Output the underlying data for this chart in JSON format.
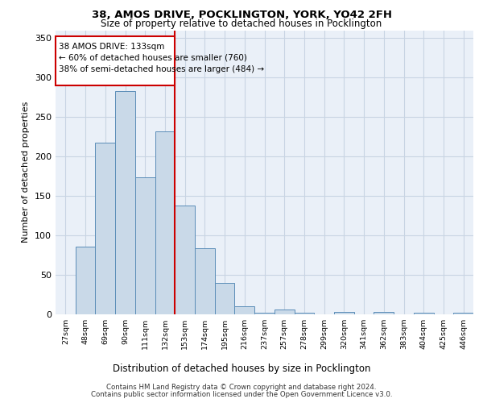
{
  "title_line1": "38, AMOS DRIVE, POCKLINGTON, YORK, YO42 2FH",
  "title_line2": "Size of property relative to detached houses in Pocklington",
  "xlabel": "Distribution of detached houses by size in Pocklington",
  "ylabel": "Number of detached properties",
  "footer_line1": "Contains HM Land Registry data © Crown copyright and database right 2024.",
  "footer_line2": "Contains public sector information licensed under the Open Government Licence v3.0.",
  "annotation_line1": "38 AMOS DRIVE: 133sqm",
  "annotation_line2": "← 60% of detached houses are smaller (760)",
  "annotation_line3": "38% of semi-detached houses are larger (484) →",
  "bar_color": "#c9d9e8",
  "bar_edge_color": "#5b8db8",
  "vline_color": "#cc0000",
  "vline_x": 5.5,
  "categories": [
    "27sqm",
    "48sqm",
    "69sqm",
    "90sqm",
    "111sqm",
    "132sqm",
    "153sqm",
    "174sqm",
    "195sqm",
    "216sqm",
    "237sqm",
    "257sqm",
    "278sqm",
    "299sqm",
    "320sqm",
    "341sqm",
    "362sqm",
    "383sqm",
    "404sqm",
    "425sqm",
    "446sqm"
  ],
  "values": [
    0,
    86,
    218,
    283,
    174,
    232,
    138,
    84,
    40,
    10,
    2,
    6,
    2,
    0,
    3,
    0,
    3,
    0,
    2,
    0,
    2
  ],
  "ylim": [
    0,
    360
  ],
  "yticks": [
    0,
    50,
    100,
    150,
    200,
    250,
    300,
    350
  ],
  "grid_color": "#c8d4e3",
  "plot_bg_color": "#eaf0f8"
}
